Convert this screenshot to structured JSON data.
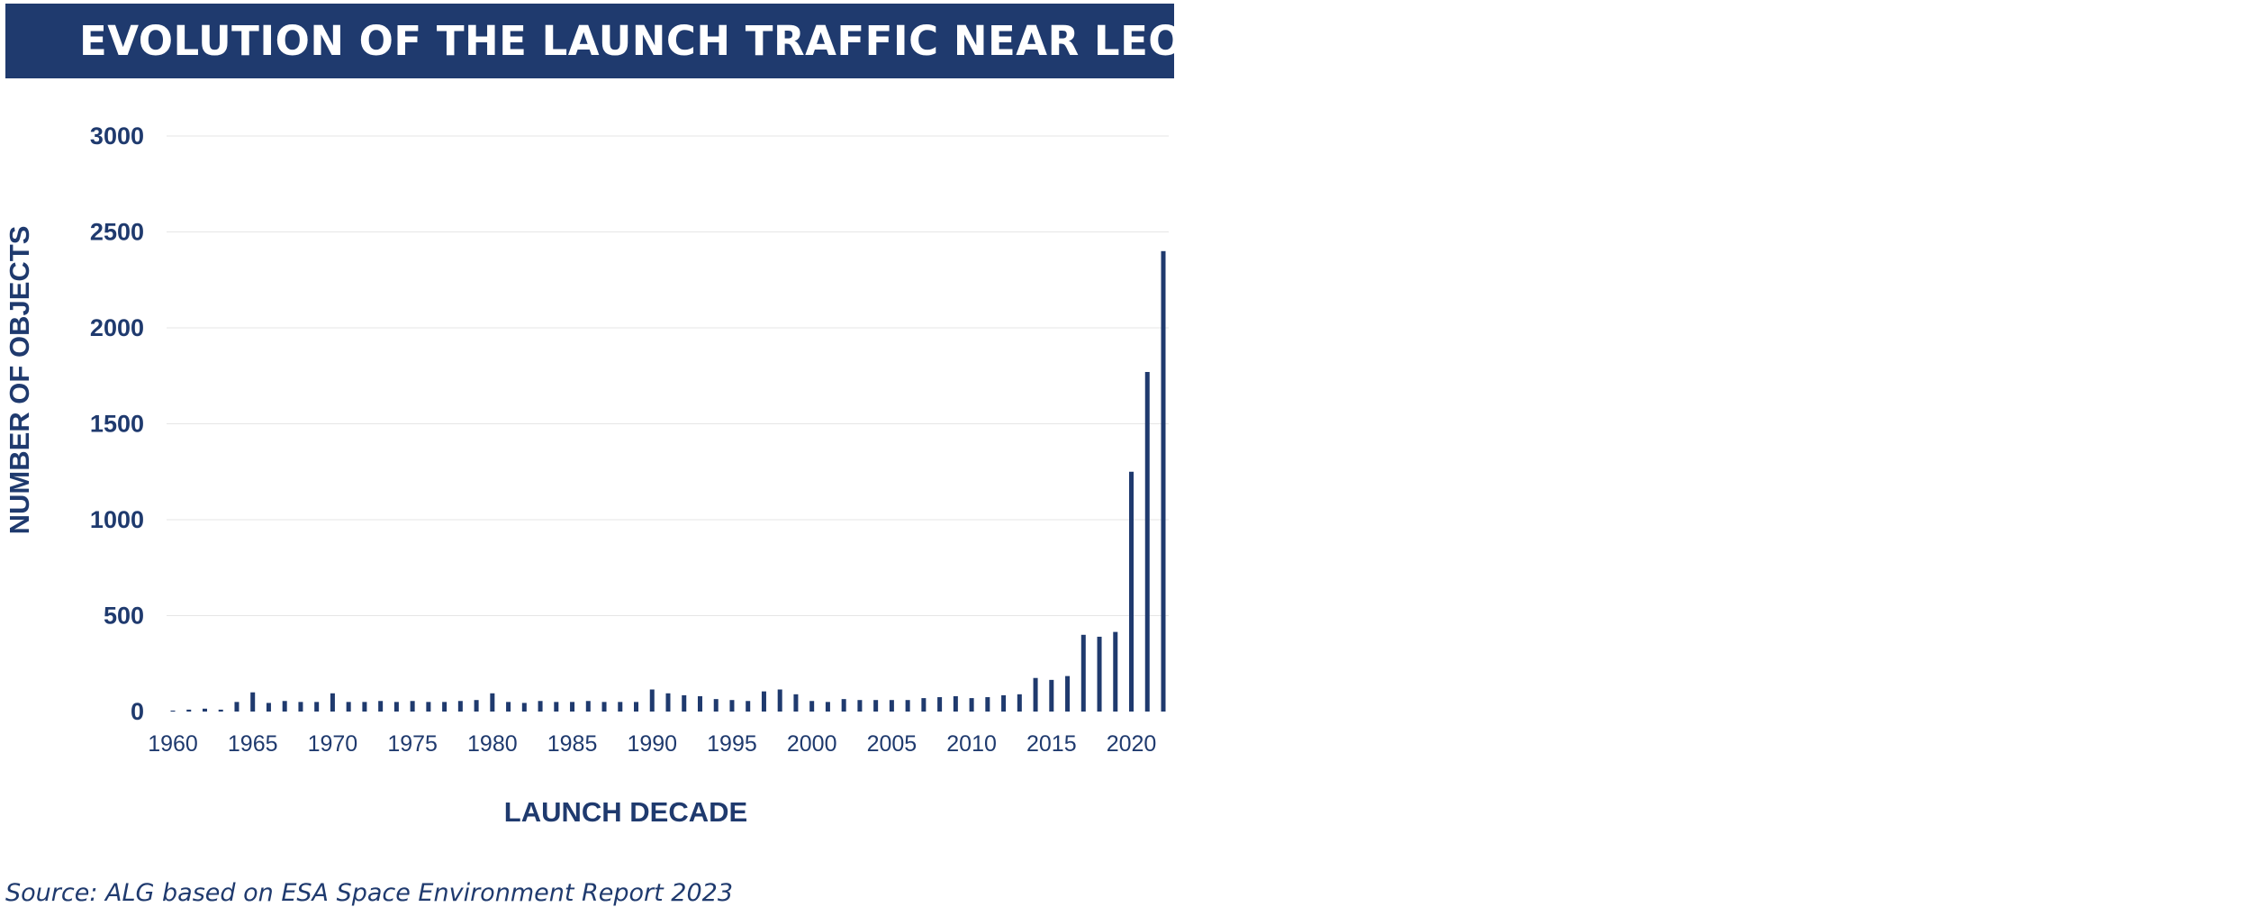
{
  "title": "EVOLUTION OF THE LAUNCH TRAFFIC NEAR LEO",
  "source": "Source: ALG based on ESA Space Environment Report 2023",
  "colors": {
    "bar": "#1f3a6e",
    "grid": "#e6e6e6",
    "text": "#1f3a6e",
    "banner": "#1f3a6e"
  },
  "chart_data": {
    "type": "bar",
    "title": "EVOLUTION OF THE LAUNCH TRAFFIC NEAR LEO",
    "xlabel": "LAUNCH DECADE",
    "ylabel": "NUMBER OF OBJECTS",
    "ylim": [
      0,
      3000
    ],
    "yticks": [
      0,
      500,
      1000,
      1500,
      2000,
      2500,
      3000
    ],
    "xticks": [
      1960,
      1965,
      1970,
      1975,
      1980,
      1985,
      1990,
      1995,
      2000,
      2005,
      2010,
      2015,
      2020
    ],
    "grid": true,
    "categories": [
      1960,
      1961,
      1962,
      1963,
      1964,
      1965,
      1966,
      1967,
      1968,
      1969,
      1970,
      1971,
      1972,
      1973,
      1974,
      1975,
      1976,
      1977,
      1978,
      1979,
      1980,
      1981,
      1982,
      1983,
      1984,
      1985,
      1986,
      1987,
      1988,
      1989,
      1990,
      1991,
      1992,
      1993,
      1994,
      1995,
      1996,
      1997,
      1998,
      1999,
      2000,
      2001,
      2002,
      2003,
      2004,
      2005,
      2006,
      2007,
      2008,
      2009,
      2010,
      2011,
      2012,
      2013,
      2014,
      2015,
      2016,
      2017,
      2018,
      2019,
      2020,
      2021,
      2022
    ],
    "values": [
      5,
      10,
      15,
      10,
      50,
      100,
      45,
      55,
      50,
      50,
      95,
      50,
      50,
      55,
      50,
      55,
      50,
      50,
      55,
      60,
      95,
      50,
      45,
      55,
      50,
      50,
      55,
      50,
      50,
      50,
      115,
      95,
      85,
      80,
      65,
      60,
      55,
      105,
      115,
      90,
      55,
      50,
      65,
      60,
      60,
      60,
      60,
      70,
      75,
      80,
      70,
      75,
      85,
      90,
      175,
      165,
      185,
      400,
      390,
      415,
      1250,
      1770,
      2400
    ]
  }
}
